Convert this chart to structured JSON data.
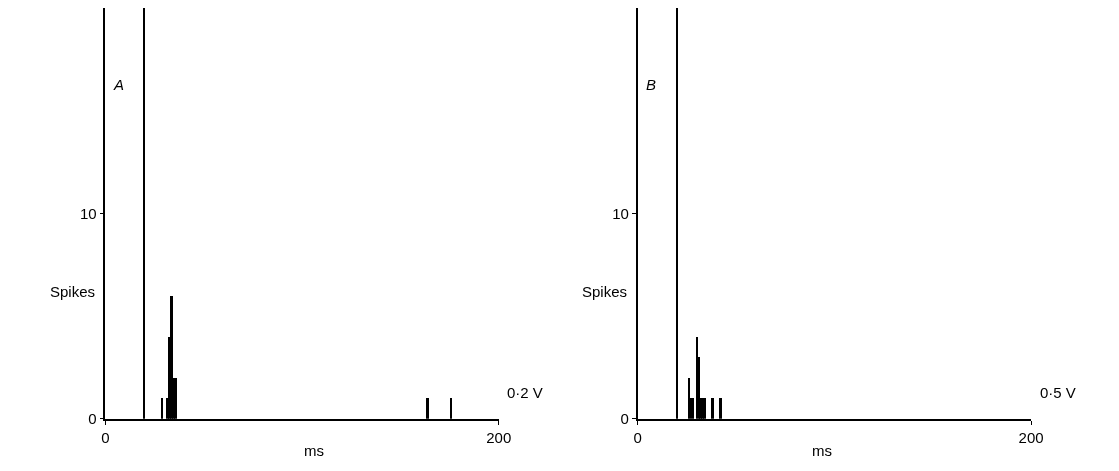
{
  "chart_data": [
    {
      "type": "bar",
      "title": "A",
      "xlabel": "ms",
      "ylabel": "Spikes",
      "annotations": [
        "0·2 V"
      ],
      "x": [
        20,
        29,
        32,
        33,
        34,
        35,
        36,
        164,
        176
      ],
      "values": [
        20,
        1,
        1,
        4,
        6,
        2,
        2,
        1,
        1
      ],
      "color": "#000000",
      "xlim": [
        0,
        200
      ],
      "xticks": [
        0,
        200
      ],
      "ylim": [
        0,
        20
      ],
      "yticks": [
        0,
        10
      ],
      "grid": false
    },
    {
      "type": "bar",
      "title": "B",
      "xlabel": "ms",
      "ylabel": "Spikes",
      "annotations": [
        "0·5 V"
      ],
      "x": [
        20,
        26,
        27,
        28,
        30,
        31,
        32,
        33,
        34,
        38,
        42
      ],
      "values": [
        20,
        2,
        1,
        1,
        4,
        3,
        1,
        1,
        1,
        1,
        1
      ],
      "color": "#000000",
      "xlim": [
        0,
        200
      ],
      "xticks": [
        0,
        200
      ],
      "ylim": [
        0,
        20
      ],
      "yticks": [
        0,
        10
      ],
      "grid": false
    }
  ]
}
